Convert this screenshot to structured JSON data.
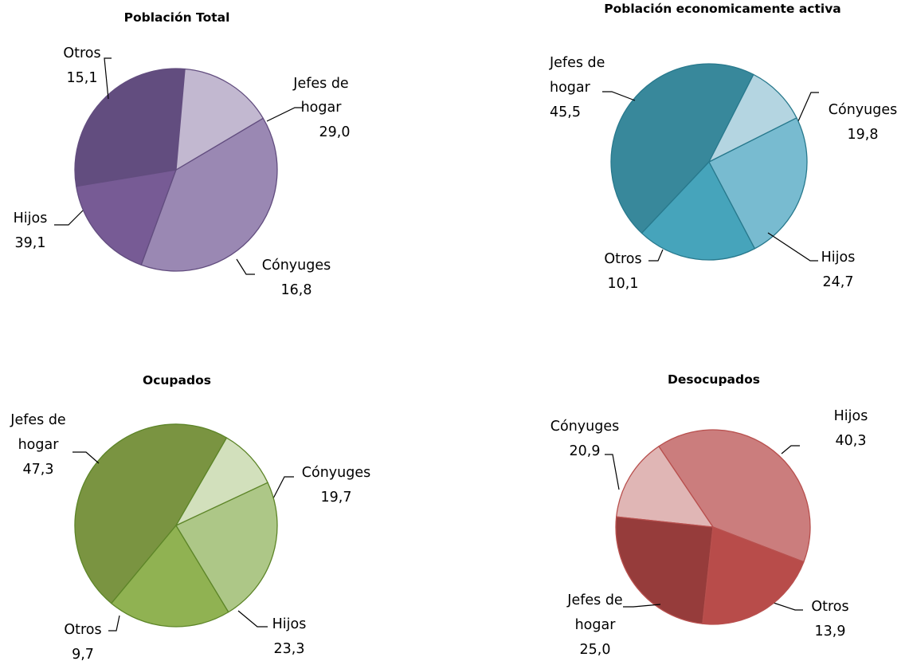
{
  "chart_data": [
    {
      "type": "pie",
      "title": "Población Total",
      "series": [
        {
          "label": "Jefes de hogar",
          "value": 29.0,
          "display": "29,0",
          "color": "#624d7f"
        },
        {
          "label": "Cónyuges",
          "value": 16.8,
          "display": "16,8",
          "color": "#775b95"
        },
        {
          "label": "Hijos",
          "value": 39.1,
          "display": "39,1",
          "color": "#9a88b3"
        },
        {
          "label": "Otros",
          "value": 15.1,
          "display": "15,1",
          "color": "#c2b8d0"
        }
      ]
    },
    {
      "type": "pie",
      "title": "Población economicamente activa",
      "series": [
        {
          "label": "Jefes de hogar",
          "value": 45.5,
          "display": "45,5",
          "color": "#38889b"
        },
        {
          "label": "Cónyuges",
          "value": 19.8,
          "display": "19,8",
          "color": "#46a4bb"
        },
        {
          "label": "Hijos",
          "value": 24.7,
          "display": "24,7",
          "color": "#78bbd0"
        },
        {
          "label": "Otros",
          "value": 10.1,
          "display": "10,1",
          "color": "#b4d5e1"
        }
      ]
    },
    {
      "type": "pie",
      "title": "Ocupados",
      "series": [
        {
          "label": "Jefes de hogar",
          "value": 47.3,
          "display": "47,3",
          "color": "#7a9441"
        },
        {
          "label": "Cónyuges",
          "value": 19.7,
          "display": "19,7",
          "color": "#90b252"
        },
        {
          "label": "Hijos",
          "value": 23.3,
          "display": "23,3",
          "color": "#adc787"
        },
        {
          "label": "Otros",
          "value": 9.7,
          "display": "9,7",
          "color": "#d2e0bc"
        }
      ]
    },
    {
      "type": "pie",
      "title": "Desocupados",
      "series": [
        {
          "label": "Hijos",
          "value": 40.3,
          "display": "40,3",
          "color": "#cb7d7d"
        },
        {
          "label": "Otros",
          "value": 13.9,
          "display": "13,9",
          "color": "#e0b6b5"
        },
        {
          "label": "Jefes de hogar",
          "value": 25.0,
          "display": "25,0",
          "color": "#963c3b"
        },
        {
          "label": "Cónyuges",
          "value": 20.9,
          "display": "20,9",
          "color": "#b84c4a"
        }
      ]
    }
  ]
}
